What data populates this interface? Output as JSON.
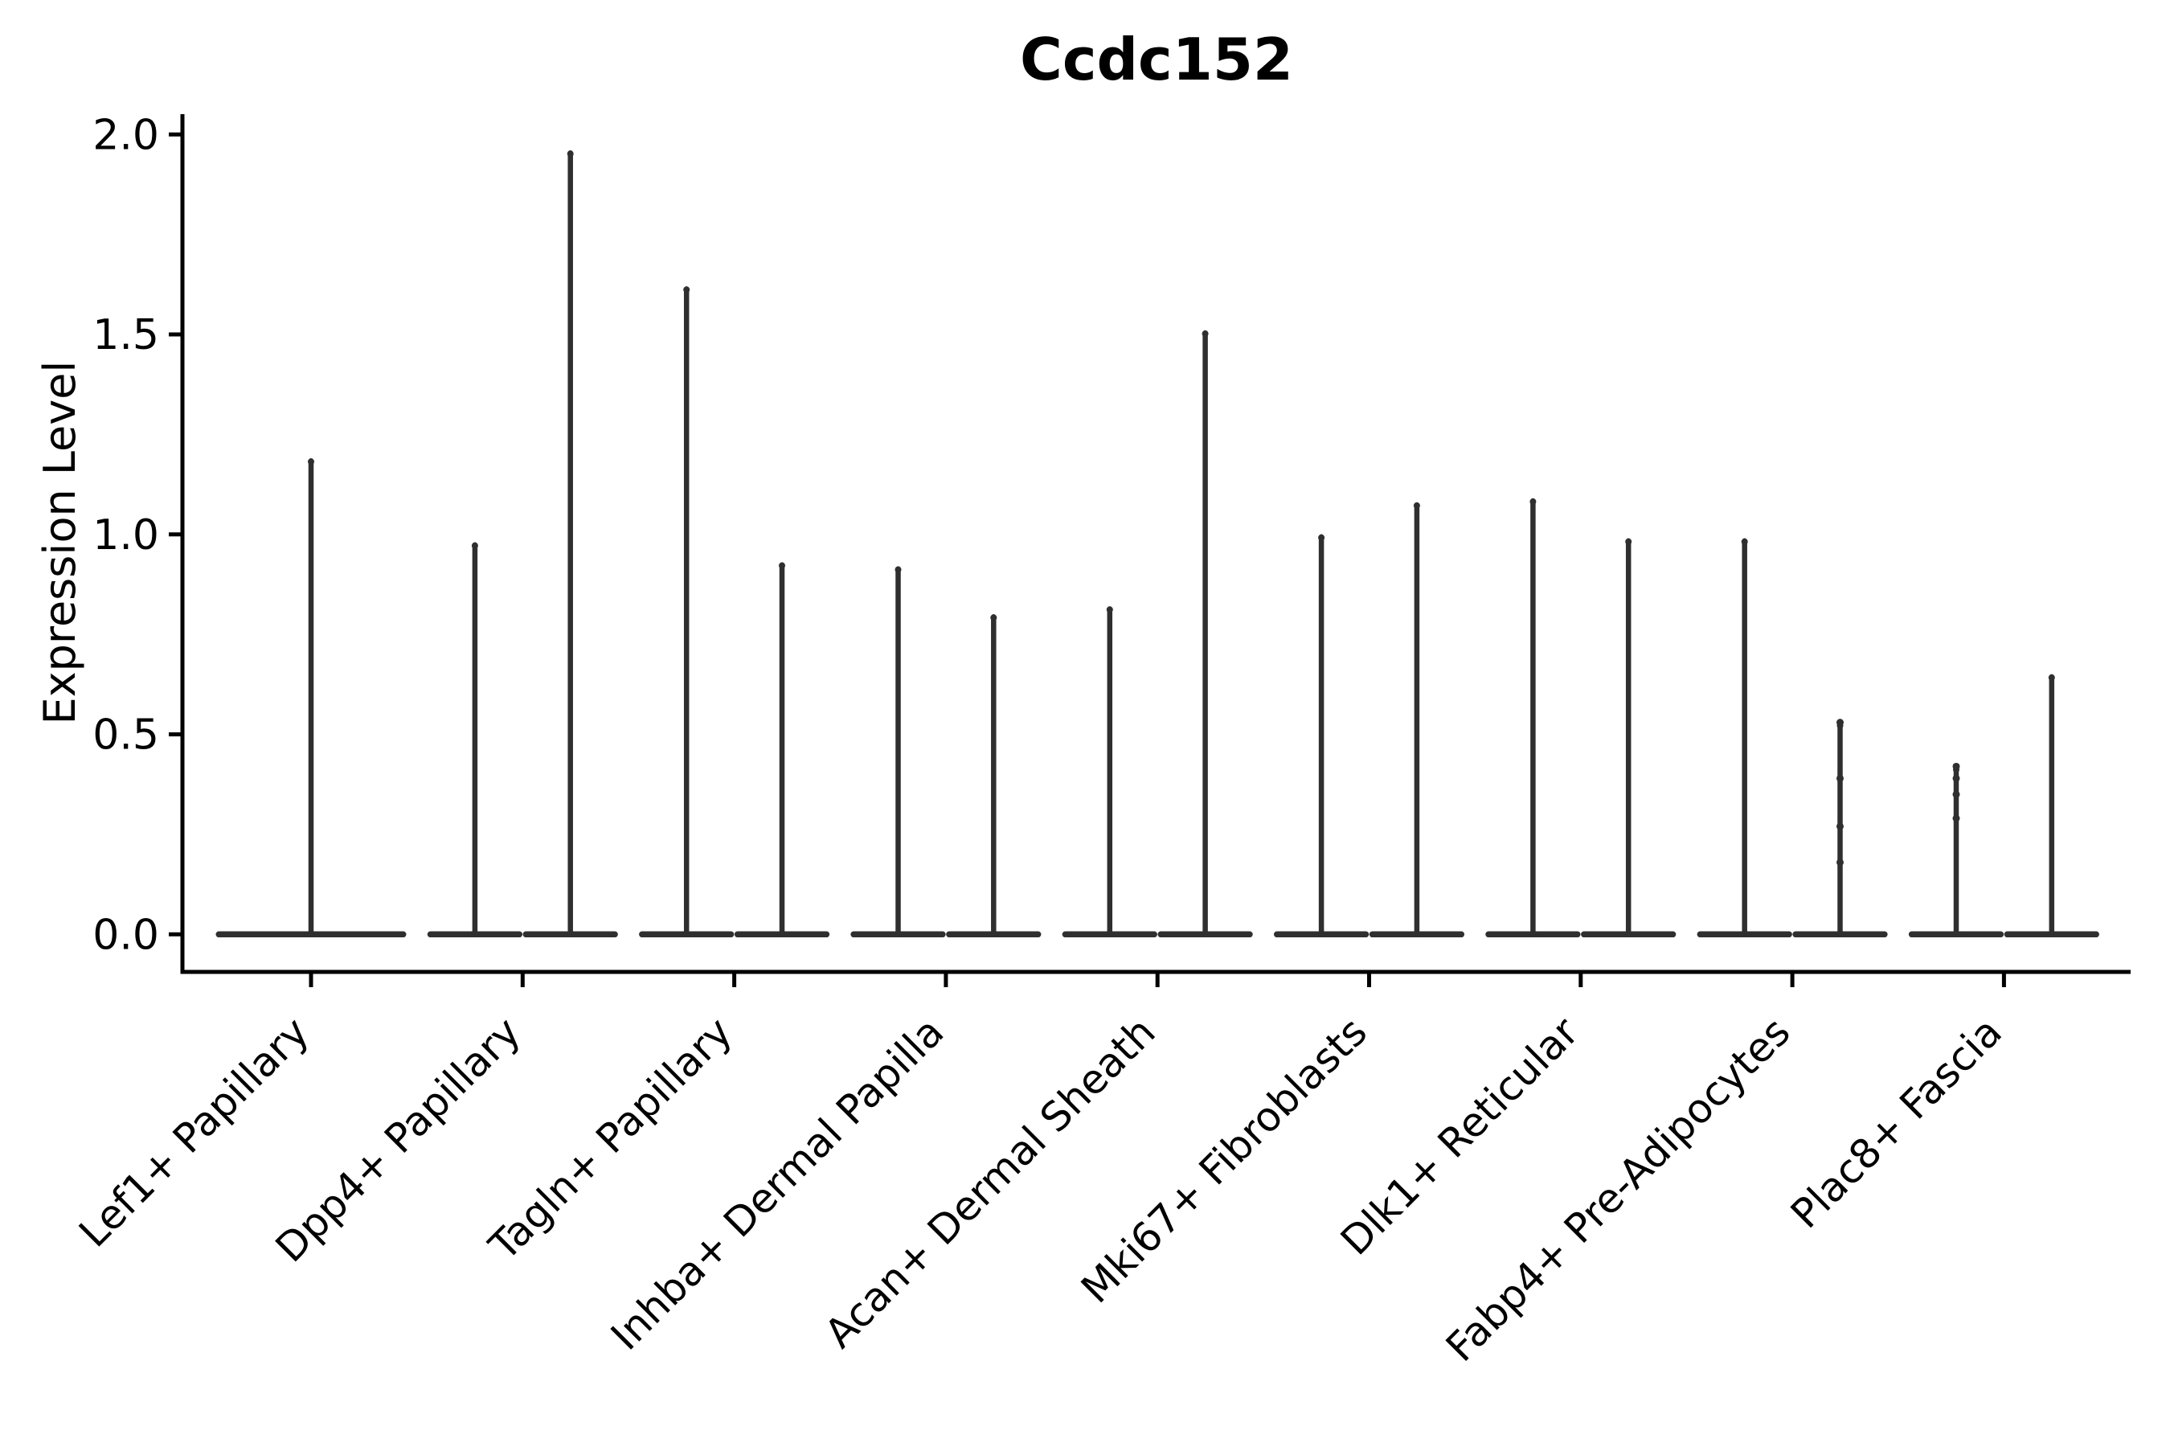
{
  "figure": {
    "background_color": "#ffffff"
  },
  "chart_data": {
    "type": "violin",
    "title": "Ccdc152",
    "xlabel": "",
    "ylabel": "Expression Level",
    "ylim": [
      -0.09,
      2.05
    ],
    "yticks": [
      0.0,
      0.5,
      1.0,
      1.5,
      2.0
    ],
    "grid": "off",
    "legend": "none",
    "baseline_value": 0.0,
    "note": "Single-cell expression violin plot; each violin collapses to a flat base at 0 with a thin vertical spike reaching the category maximum. Categories 2-9 contain two side-by-side violins (left/right split); category 1 has a single full-width violin.",
    "colors": {
      "violin": "#2f2f2f",
      "text": "#000000",
      "background": "#ffffff"
    },
    "categories": [
      {
        "label": "Lef1+ Papillary",
        "violins": [
          {
            "split": "single",
            "max": 1.19
          }
        ]
      },
      {
        "label": "Dpp4+ Papillary",
        "violins": [
          {
            "split": "left",
            "max": 0.98
          },
          {
            "split": "right",
            "max": 1.96
          }
        ]
      },
      {
        "label": "Tagln+ Papillary",
        "violins": [
          {
            "split": "left",
            "max": 1.62
          },
          {
            "split": "right",
            "max": 0.93
          }
        ]
      },
      {
        "label": "Inhba+ Dermal Papilla",
        "violins": [
          {
            "split": "left",
            "max": 0.92
          },
          {
            "split": "right",
            "max": 0.8
          }
        ]
      },
      {
        "label": "Acan+ Dermal Sheath",
        "violins": [
          {
            "split": "left",
            "max": 0.82
          },
          {
            "split": "right",
            "max": 1.51
          }
        ]
      },
      {
        "label": "Mki67+ Fibroblasts",
        "violins": [
          {
            "split": "left",
            "max": 1.0
          },
          {
            "split": "right",
            "max": 1.08
          }
        ]
      },
      {
        "label": "Dlk1+ Reticular",
        "violins": [
          {
            "split": "left",
            "max": 1.09
          },
          {
            "split": "right",
            "max": 0.99
          }
        ]
      },
      {
        "label": "Fabp4+ Pre-Adipocytes",
        "violins": [
          {
            "split": "left",
            "max": 0.99
          },
          {
            "split": "right",
            "max": 0.53,
            "points": [
              0.53,
              0.39,
              0.27,
              0.18
            ]
          }
        ]
      },
      {
        "label": "Plac8+ Fascia",
        "violins": [
          {
            "split": "left",
            "max": 0.42,
            "points": [
              0.42,
              0.39,
              0.35,
              0.29
            ]
          },
          {
            "split": "right",
            "max": 0.65
          }
        ]
      }
    ]
  }
}
